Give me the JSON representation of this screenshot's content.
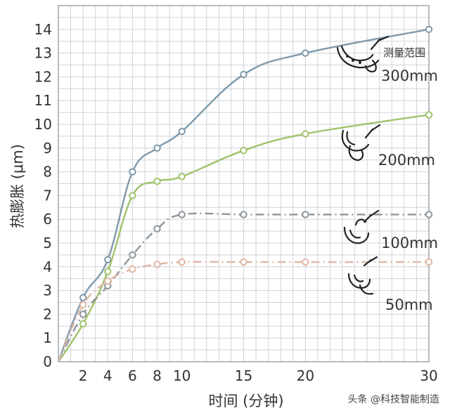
{
  "chart_data": {
    "type": "line",
    "xlabel": "时间 (分钟)",
    "ylabel": "热膨胀 (μm)",
    "x_ticks": [
      2,
      4,
      6,
      8,
      10,
      15,
      20,
      30
    ],
    "y_ticks": [
      0,
      1,
      2,
      3,
      4,
      5,
      6,
      7,
      8,
      9,
      10,
      11,
      12,
      13,
      14
    ],
    "xlim": [
      0,
      30
    ],
    "ylim": [
      0,
      15
    ],
    "grid": true,
    "legend_title": "测量范围",
    "series": [
      {
        "name": "300mm",
        "color": "#7f99ab",
        "dash": "solid",
        "x": [
          0,
          2,
          4,
          6,
          8,
          10,
          15,
          20,
          30
        ],
        "y": [
          0,
          2.7,
          4.3,
          8.0,
          9.0,
          9.7,
          12.1,
          13.0,
          14.0
        ]
      },
      {
        "name": "200mm",
        "color": "#9fc36a",
        "dash": "solid",
        "x": [
          0,
          2,
          4,
          6,
          8,
          10,
          15,
          20,
          30
        ],
        "y": [
          0,
          1.6,
          3.8,
          7.0,
          7.6,
          7.8,
          8.9,
          9.6,
          10.4
        ]
      },
      {
        "name": "100mm",
        "color": "#8d959b",
        "dash": "dashdot",
        "x": [
          0,
          2,
          4,
          6,
          8,
          10,
          15,
          20,
          30
        ],
        "y": [
          0,
          2.0,
          3.2,
          4.5,
          5.6,
          6.2,
          6.2,
          6.2,
          6.2
        ]
      },
      {
        "name": "50mm",
        "color": "#e0b7a4",
        "dash": "dashdot",
        "x": [
          0,
          2,
          4,
          6,
          8,
          10,
          15,
          20,
          30
        ],
        "y": [
          0,
          2.4,
          3.4,
          3.9,
          4.1,
          4.2,
          4.2,
          4.2,
          4.2
        ]
      }
    ]
  },
  "watermark": "头条 @科技智能制造"
}
